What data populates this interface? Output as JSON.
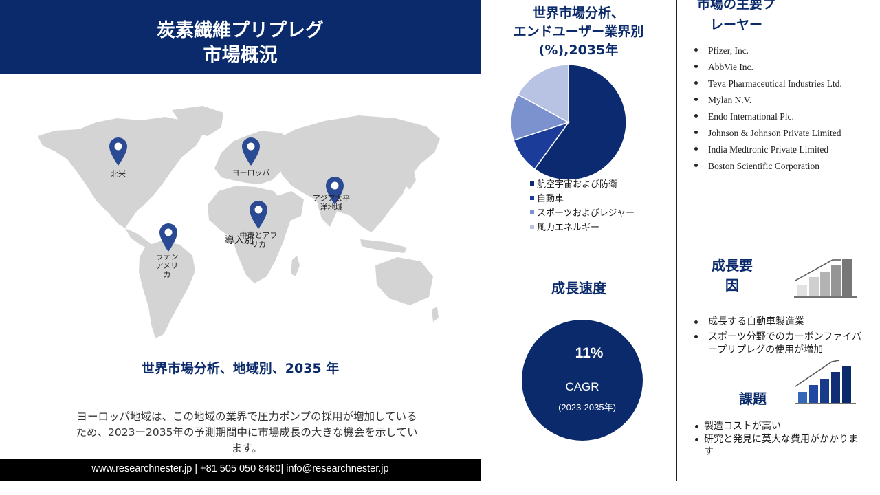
{
  "header": {
    "title_line1": "炭素繊維プリプレグ",
    "title_line2": "市場概況"
  },
  "map": {
    "regions": [
      {
        "name": "north_america",
        "label": "北米"
      },
      {
        "name": "europe",
        "label": "ヨーロッパ"
      },
      {
        "name": "asia_pacific",
        "label": "アジア太平洋地域"
      },
      {
        "name": "middle_east_africa",
        "label": "中東とアフリカ"
      },
      {
        "name": "latin_america",
        "label": "ラテンアメリカ"
      }
    ],
    "overlay_text": "導入別"
  },
  "regional_title": "世界市場分析、地域別、2035 年",
  "description": "ヨーロッパ地域は、この地域の業界で圧力ポンプの採用が増加しているため、2023ー2035年の予測期間中に市場成長の大きな機会を示しています。",
  "footer": {
    "text": "www.researchnester.jp | +81 505 050 8480| info@researchnester.jp"
  },
  "chart_section": {
    "title_line1": "世界市場分析、",
    "title_line2": "エンドユーザー業界別",
    "title_line3": "(%),2035年"
  },
  "chart_data": {
    "type": "pie",
    "title": "世界市場分析、エンドユーザー業界別(%),2035年",
    "categories": [
      "航空宇宙および防衛",
      "自動車",
      "スポーツおよびレジャー",
      "風力エネルギー"
    ],
    "values": [
      60,
      10,
      13,
      17
    ],
    "colors": [
      "#0c2a70",
      "#1b3d99",
      "#7b92cf",
      "#b8c3e3"
    ],
    "legend_position": "bottom"
  },
  "players": {
    "title_line1": "市場の主要プ",
    "title_line2": "レーヤー",
    "items": [
      "Pfizer, Inc.",
      "AbbVie Inc.",
      "Teva Pharmaceutical Industries Ltd.",
      "Mylan N.V.",
      "Endo International Plc.",
      "Johnson & Johnson Private Limited",
      "India Medtronic Private Limited",
      "Boston Scientific Corporation"
    ]
  },
  "growth_rate": {
    "title": "成長速度",
    "value": "11%",
    "label": "CAGR",
    "period": "(2023-2035年)"
  },
  "drivers": {
    "title_line1": "成長要",
    "title_line2": "因",
    "items": [
      "成長する自動車製造業",
      "スポーツ分野でのカーボンファイバープリプレグの使用が増加"
    ]
  },
  "challenges": {
    "title": "課題",
    "items": [
      "製造コストが高い",
      "研究と発見に莫大な費用がかかります"
    ]
  },
  "colors": {
    "navy": "#0a2a6b",
    "map_gray": "#d4d4d4",
    "pin": "#2b4a94"
  }
}
